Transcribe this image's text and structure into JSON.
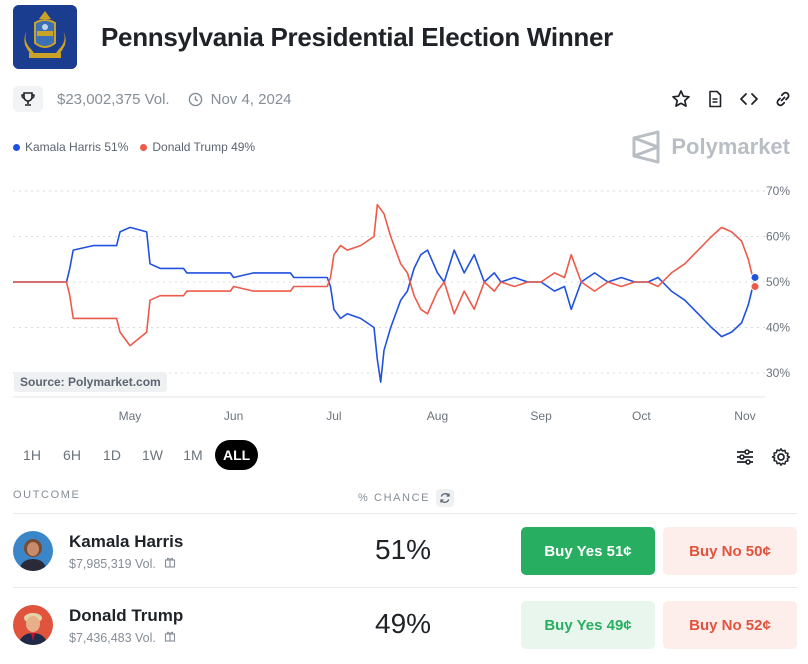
{
  "market": {
    "title": "Pennsylvania Presidential Election Winner",
    "volume": "$23,002,375 Vol.",
    "date": "Nov 4, 2024"
  },
  "icons": {
    "trophy": "trophy-icon",
    "clock": "clock-icon",
    "star": "star-icon",
    "document": "document-icon",
    "embed": "code-icon",
    "link": "link-icon",
    "filters": "sliders-icon",
    "settings": "gear-icon",
    "refresh": "refresh-icon",
    "gift": "gift-icon"
  },
  "brand": {
    "watermark": "Polymarket",
    "source": "Source: Polymarket.com"
  },
  "colors": {
    "harris": "#2151e0",
    "trump": "#ee5a4a",
    "buy_yes": "#27ae60",
    "buy_no": "#e0533d"
  },
  "legend": [
    {
      "label": "Kamala Harris 51%",
      "color": "#2151e0"
    },
    {
      "label": "Donald Trump 49%",
      "color": "#ee5a4a"
    }
  ],
  "ranges": [
    {
      "label": "1H",
      "active": false
    },
    {
      "label": "6H",
      "active": false
    },
    {
      "label": "1D",
      "active": false
    },
    {
      "label": "1W",
      "active": false
    },
    {
      "label": "1M",
      "active": false
    },
    {
      "label": "ALL",
      "active": true
    }
  ],
  "table": {
    "outcome_header": "OUTCOME",
    "chance_header": "% CHANCE",
    "rows": [
      {
        "name": "Kamala Harris",
        "volume": "$7,985,319 Vol.",
        "chance": "51%",
        "buy_yes": "Buy Yes 51¢",
        "buy_no": "Buy No 50¢",
        "yes_style": "solid"
      },
      {
        "name": "Donald Trump",
        "volume": "$7,436,483 Vol.",
        "chance": "49%",
        "buy_yes": "Buy Yes 49¢",
        "buy_no": "Buy No 52¢",
        "yes_style": "soft"
      }
    ]
  },
  "chart_data": {
    "type": "line",
    "x_ticks": [
      "May",
      "Jun",
      "Jul",
      "Aug",
      "Sep",
      "Oct",
      "Nov"
    ],
    "y_ticks": [
      "70%",
      "60%",
      "50%",
      "40%",
      "30%"
    ],
    "ylim": [
      30,
      70
    ],
    "y_unit": "%",
    "grid": true,
    "legend_position": "top-left",
    "series": [
      {
        "name": "Kamala Harris",
        "color": "#2151e0",
        "points": [
          [
            "2024-03-27",
            50
          ],
          [
            "2024-04-12",
            50
          ],
          [
            "2024-04-13",
            53
          ],
          [
            "2024-04-14",
            57
          ],
          [
            "2024-04-20",
            58
          ],
          [
            "2024-04-27",
            58
          ],
          [
            "2024-04-28",
            61
          ],
          [
            "2024-05-01",
            62
          ],
          [
            "2024-05-06",
            61
          ],
          [
            "2024-05-07",
            54
          ],
          [
            "2024-05-10",
            53
          ],
          [
            "2024-05-17",
            53
          ],
          [
            "2024-05-18",
            52
          ],
          [
            "2024-05-31",
            52
          ],
          [
            "2024-06-01",
            51
          ],
          [
            "2024-06-07",
            52
          ],
          [
            "2024-06-18",
            52
          ],
          [
            "2024-06-19",
            51
          ],
          [
            "2024-06-29",
            51
          ],
          [
            "2024-06-30",
            49
          ],
          [
            "2024-07-01",
            44
          ],
          [
            "2024-07-03",
            42
          ],
          [
            "2024-07-05",
            43
          ],
          [
            "2024-07-09",
            42
          ],
          [
            "2024-07-13",
            40
          ],
          [
            "2024-07-14",
            33
          ],
          [
            "2024-07-15",
            28
          ],
          [
            "2024-07-16",
            35
          ],
          [
            "2024-07-18",
            40
          ],
          [
            "2024-07-21",
            46
          ],
          [
            "2024-07-23",
            48
          ],
          [
            "2024-07-25",
            53
          ],
          [
            "2024-07-27",
            56
          ],
          [
            "2024-07-29",
            57
          ],
          [
            "2024-08-01",
            52
          ],
          [
            "2024-08-03",
            50
          ],
          [
            "2024-08-06",
            57
          ],
          [
            "2024-08-09",
            52
          ],
          [
            "2024-08-12",
            56
          ],
          [
            "2024-08-15",
            50
          ],
          [
            "2024-08-18",
            52
          ],
          [
            "2024-08-20",
            50
          ],
          [
            "2024-08-24",
            51
          ],
          [
            "2024-08-28",
            50
          ],
          [
            "2024-09-01",
            50
          ],
          [
            "2024-09-05",
            48
          ],
          [
            "2024-09-08",
            49
          ],
          [
            "2024-09-10",
            44
          ],
          [
            "2024-09-13",
            50
          ],
          [
            "2024-09-17",
            52
          ],
          [
            "2024-09-21",
            50
          ],
          [
            "2024-09-25",
            51
          ],
          [
            "2024-09-29",
            50
          ],
          [
            "2024-10-03",
            50
          ],
          [
            "2024-10-06",
            51
          ],
          [
            "2024-10-10",
            48
          ],
          [
            "2024-10-14",
            46
          ],
          [
            "2024-10-18",
            43
          ],
          [
            "2024-10-22",
            40
          ],
          [
            "2024-10-25",
            38
          ],
          [
            "2024-10-28",
            39
          ],
          [
            "2024-10-31",
            41
          ],
          [
            "2024-11-02",
            45
          ],
          [
            "2024-11-04",
            51
          ]
        ]
      },
      {
        "name": "Donald Trump",
        "color": "#ee5a4a",
        "points": [
          [
            "2024-03-27",
            50
          ],
          [
            "2024-04-12",
            50
          ],
          [
            "2024-04-13",
            47
          ],
          [
            "2024-04-14",
            42
          ],
          [
            "2024-04-20",
            42
          ],
          [
            "2024-04-27",
            42
          ],
          [
            "2024-04-28",
            39
          ],
          [
            "2024-05-01",
            36
          ],
          [
            "2024-05-06",
            39
          ],
          [
            "2024-05-07",
            46
          ],
          [
            "2024-05-10",
            47
          ],
          [
            "2024-05-17",
            47
          ],
          [
            "2024-05-18",
            48
          ],
          [
            "2024-05-31",
            48
          ],
          [
            "2024-06-01",
            49
          ],
          [
            "2024-06-07",
            48
          ],
          [
            "2024-06-18",
            48
          ],
          [
            "2024-06-19",
            49
          ],
          [
            "2024-06-29",
            49
          ],
          [
            "2024-06-30",
            51
          ],
          [
            "2024-07-01",
            56
          ],
          [
            "2024-07-03",
            58
          ],
          [
            "2024-07-05",
            57
          ],
          [
            "2024-07-09",
            58
          ],
          [
            "2024-07-13",
            60
          ],
          [
            "2024-07-14",
            67
          ],
          [
            "2024-07-15",
            66
          ],
          [
            "2024-07-16",
            65
          ],
          [
            "2024-07-18",
            60
          ],
          [
            "2024-07-21",
            54
          ],
          [
            "2024-07-23",
            52
          ],
          [
            "2024-07-25",
            47
          ],
          [
            "2024-07-27",
            44
          ],
          [
            "2024-07-29",
            43
          ],
          [
            "2024-08-01",
            48
          ],
          [
            "2024-08-03",
            50
          ],
          [
            "2024-08-06",
            43
          ],
          [
            "2024-08-09",
            48
          ],
          [
            "2024-08-12",
            44
          ],
          [
            "2024-08-15",
            50
          ],
          [
            "2024-08-18",
            48
          ],
          [
            "2024-08-20",
            50
          ],
          [
            "2024-08-24",
            49
          ],
          [
            "2024-08-28",
            50
          ],
          [
            "2024-09-01",
            50
          ],
          [
            "2024-09-05",
            52
          ],
          [
            "2024-09-08",
            51
          ],
          [
            "2024-09-10",
            56
          ],
          [
            "2024-09-13",
            50
          ],
          [
            "2024-09-17",
            48
          ],
          [
            "2024-09-21",
            50
          ],
          [
            "2024-09-25",
            49
          ],
          [
            "2024-09-29",
            50
          ],
          [
            "2024-10-03",
            50
          ],
          [
            "2024-10-06",
            49
          ],
          [
            "2024-10-10",
            52
          ],
          [
            "2024-10-14",
            54
          ],
          [
            "2024-10-18",
            57
          ],
          [
            "2024-10-22",
            60
          ],
          [
            "2024-10-25",
            62
          ],
          [
            "2024-10-28",
            61
          ],
          [
            "2024-10-31",
            59
          ],
          [
            "2024-11-02",
            55
          ],
          [
            "2024-11-04",
            49
          ]
        ]
      }
    ]
  }
}
